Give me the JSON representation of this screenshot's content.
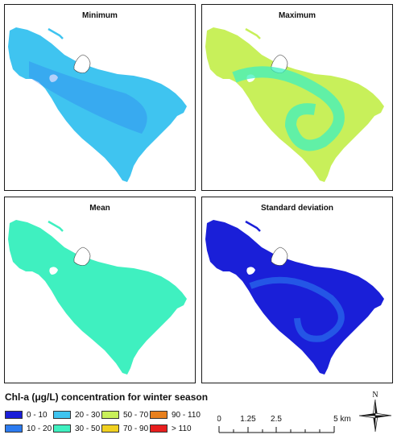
{
  "panels": [
    {
      "title": "Minimum",
      "class_index": 2
    },
    {
      "title": "Maximum",
      "class_index": 4
    },
    {
      "title": "Mean",
      "class_index": 3
    },
    {
      "title": "Standard deviation",
      "class_index": 0
    }
  ],
  "legend": {
    "title": "Chl-a (μg/L) concentration for winter season",
    "classes": [
      {
        "label": "0 - 10",
        "color": "#1a1fd8"
      },
      {
        "label": "10 - 20",
        "color": "#2c7bf0"
      },
      {
        "label": "20 - 30",
        "color": "#3fc4f0"
      },
      {
        "label": "30 - 50",
        "color": "#3ff0c0"
      },
      {
        "label": "50 - 70",
        "color": "#c8f05a"
      },
      {
        "label": "70 - 90",
        "color": "#f0d020"
      },
      {
        "label": "90 - 110",
        "color": "#e8801e"
      },
      {
        "label": "> 110",
        "color": "#e81e1e"
      }
    ]
  },
  "scale_bar": {
    "ticks": [
      "0",
      "1.25",
      "2.5",
      "5 km"
    ]
  },
  "north_arrow": {
    "label": "N"
  }
}
